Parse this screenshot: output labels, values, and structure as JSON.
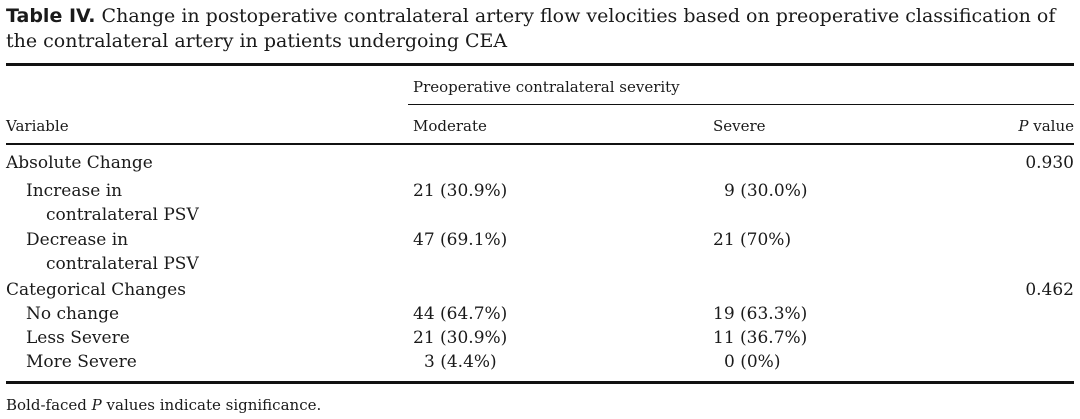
{
  "caption": {
    "label": "Table IV.",
    "text": "Change in postoperative contralateral artery flow velocities based on preoperative classification of the contralateral artery in patients undergoing CEA"
  },
  "header": {
    "group_label": "Preoperative contralateral severity",
    "variable": "Variable",
    "moderate": "Moderate",
    "severe": "Severe",
    "p_italic": "P",
    "p_rest": " value"
  },
  "rows": {
    "absolute_change": {
      "label": "Absolute Change",
      "p": "0.930"
    },
    "increase": {
      "label_line1": "Increase in",
      "label_line2": "contralateral PSV",
      "moderate": "21 (30.9%)",
      "severe": "9 (30.0%)"
    },
    "decrease": {
      "label_line1": "Decrease in",
      "label_line2": "contralateral PSV",
      "moderate": "47 (69.1%)",
      "severe": "21 (70%)"
    },
    "categorical": {
      "label": "Categorical Changes",
      "p": "0.462"
    },
    "no_change": {
      "label": "No change",
      "moderate": "44 (64.7%)",
      "severe": "19 (63.3%)"
    },
    "less_severe": {
      "label": "Less Severe",
      "moderate": "21 (30.9%)",
      "severe": "11 (36.7%)"
    },
    "more_severe": {
      "label": "More Severe",
      "moderate": "3 (4.4%)",
      "severe": "0 (0%)"
    }
  },
  "footnote": {
    "pre": "Bold-faced ",
    "italic": "P",
    "post": " values indicate significance."
  }
}
